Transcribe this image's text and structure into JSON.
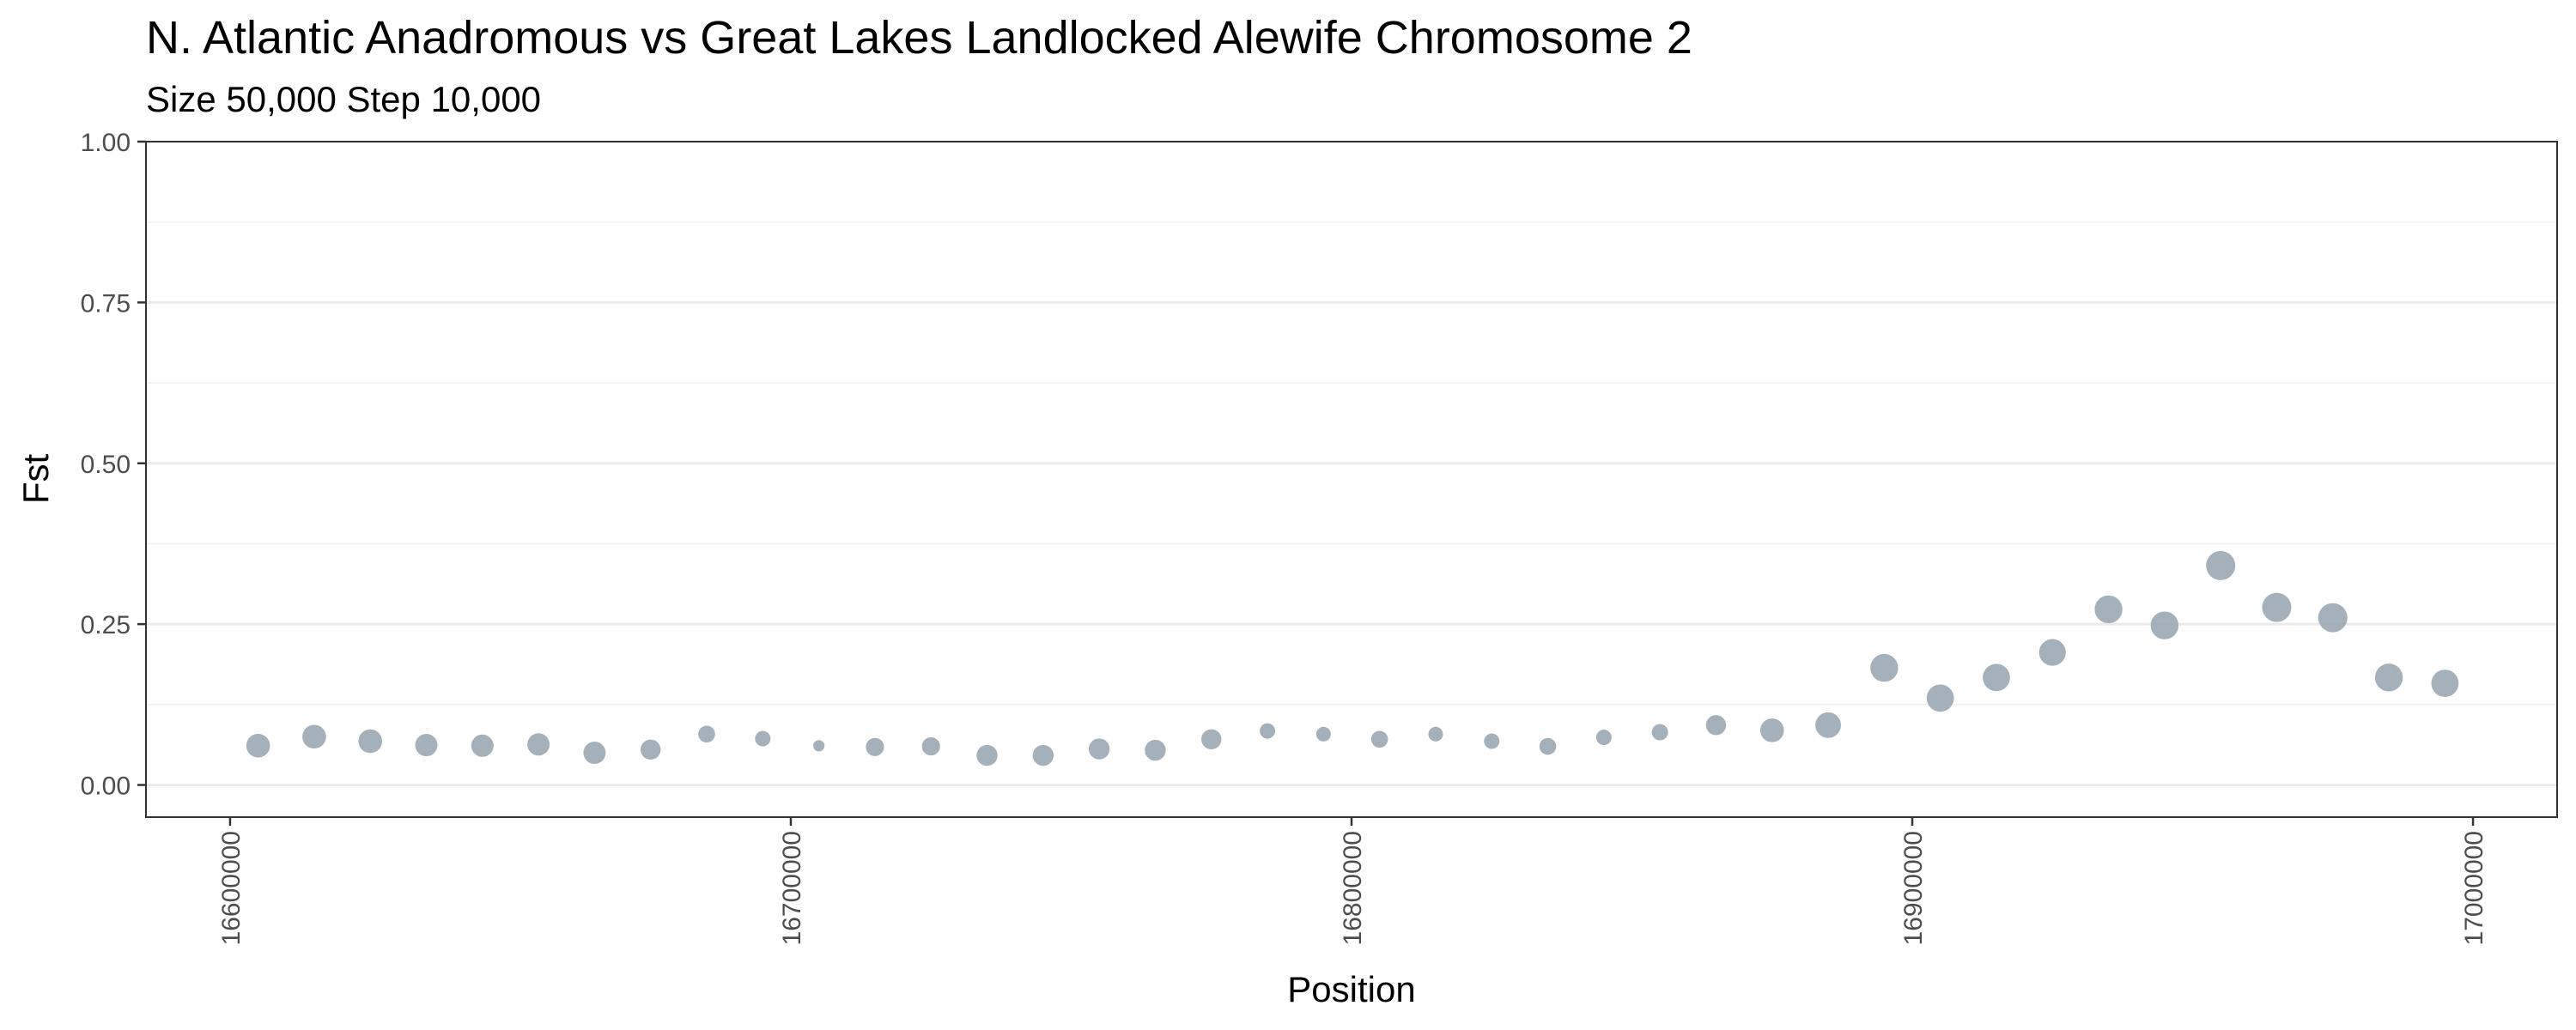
{
  "chart_data": {
    "type": "scatter",
    "title": "N. Atlantic Anadromous vs Great Lakes Landlocked Alewife Chromosome 2",
    "subtitle": "Size 50,000 Step 10,000",
    "xlabel": "Position",
    "ylabel": "Fst",
    "xlim": [
      16585000,
      17015000
    ],
    "ylim": [
      -0.05,
      1.0
    ],
    "x_ticks": [
      16600000,
      16700000,
      16800000,
      16900000,
      17000000
    ],
    "x_tick_labels": [
      "16600000",
      "16700000",
      "16800000",
      "16900000",
      "17000000"
    ],
    "y_ticks": [
      0.0,
      0.25,
      0.5,
      0.75,
      1.0
    ],
    "y_tick_labels": [
      "0.00",
      "0.25",
      "0.50",
      "0.75",
      "1.00"
    ],
    "grid": true,
    "legend": "none",
    "point_color": "#9aa9b3",
    "size_encoding": "point size varies per window; larger points at higher Fst",
    "points": [
      {
        "x": 16605000,
        "y": 0.061,
        "size": 0.55
      },
      {
        "x": 16615000,
        "y": 0.075,
        "size": 0.55
      },
      {
        "x": 16625000,
        "y": 0.068,
        "size": 0.55
      },
      {
        "x": 16635000,
        "y": 0.062,
        "size": 0.5
      },
      {
        "x": 16645000,
        "y": 0.061,
        "size": 0.5
      },
      {
        "x": 16655000,
        "y": 0.063,
        "size": 0.5
      },
      {
        "x": 16665000,
        "y": 0.05,
        "size": 0.5
      },
      {
        "x": 16675000,
        "y": 0.055,
        "size": 0.42
      },
      {
        "x": 16685000,
        "y": 0.079,
        "size": 0.3
      },
      {
        "x": 16695000,
        "y": 0.072,
        "size": 0.25
      },
      {
        "x": 16705000,
        "y": 0.061,
        "size": 0.1
      },
      {
        "x": 16715000,
        "y": 0.059,
        "size": 0.35
      },
      {
        "x": 16725000,
        "y": 0.06,
        "size": 0.35
      },
      {
        "x": 16735000,
        "y": 0.046,
        "size": 0.45
      },
      {
        "x": 16745000,
        "y": 0.046,
        "size": 0.45
      },
      {
        "x": 16755000,
        "y": 0.056,
        "size": 0.45
      },
      {
        "x": 16765000,
        "y": 0.054,
        "size": 0.45
      },
      {
        "x": 16775000,
        "y": 0.071,
        "size": 0.42
      },
      {
        "x": 16785000,
        "y": 0.084,
        "size": 0.25
      },
      {
        "x": 16795000,
        "y": 0.079,
        "size": 0.22
      },
      {
        "x": 16805000,
        "y": 0.071,
        "size": 0.3
      },
      {
        "x": 16815000,
        "y": 0.079,
        "size": 0.22
      },
      {
        "x": 16825000,
        "y": 0.068,
        "size": 0.25
      },
      {
        "x": 16835000,
        "y": 0.06,
        "size": 0.3
      },
      {
        "x": 16845000,
        "y": 0.074,
        "size": 0.25
      },
      {
        "x": 16855000,
        "y": 0.082,
        "size": 0.28
      },
      {
        "x": 16865000,
        "y": 0.093,
        "size": 0.42
      },
      {
        "x": 16875000,
        "y": 0.085,
        "size": 0.55
      },
      {
        "x": 16885000,
        "y": 0.093,
        "size": 0.62
      },
      {
        "x": 16895000,
        "y": 0.182,
        "size": 0.7
      },
      {
        "x": 16905000,
        "y": 0.135,
        "size": 0.68
      },
      {
        "x": 16915000,
        "y": 0.167,
        "size": 0.68
      },
      {
        "x": 16925000,
        "y": 0.206,
        "size": 0.66
      },
      {
        "x": 16935000,
        "y": 0.273,
        "size": 0.7
      },
      {
        "x": 16945000,
        "y": 0.248,
        "size": 0.7
      },
      {
        "x": 16955000,
        "y": 0.341,
        "size": 0.75
      },
      {
        "x": 16965000,
        "y": 0.276,
        "size": 0.75
      },
      {
        "x": 16975000,
        "y": 0.26,
        "size": 0.75
      },
      {
        "x": 16985000,
        "y": 0.167,
        "size": 0.7
      },
      {
        "x": 16995000,
        "y": 0.158,
        "size": 0.68
      }
    ]
  }
}
